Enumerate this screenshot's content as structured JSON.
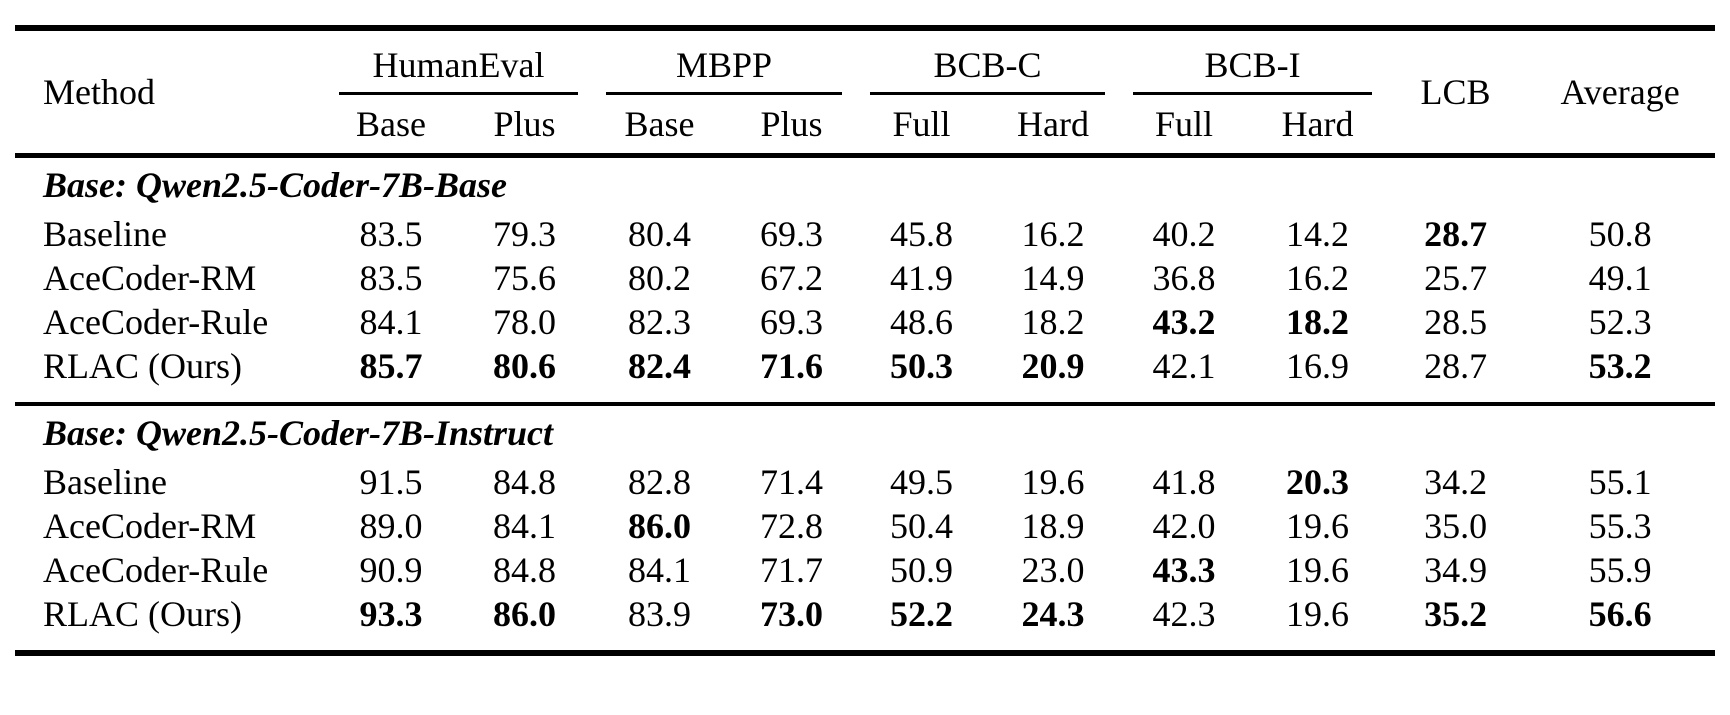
{
  "page": {
    "background_color": "#ffffff",
    "text_color": "#000000",
    "rule_color": "#000000"
  },
  "table": {
    "method_header": "Method",
    "groups": [
      {
        "label": "HumanEval",
        "subs": [
          "Base",
          "Plus"
        ]
      },
      {
        "label": "MBPP",
        "subs": [
          "Base",
          "Plus"
        ]
      },
      {
        "label": "BCB-C",
        "subs": [
          "Full",
          "Hard"
        ]
      },
      {
        "label": "BCB-I",
        "subs": [
          "Full",
          "Hard"
        ]
      },
      {
        "label": "LCB",
        "subs": []
      },
      {
        "label": "Average",
        "subs": []
      }
    ],
    "sections": [
      {
        "title": "Base: Qwen2.5-Coder-7B-Base",
        "rows": [
          {
            "method": "Baseline",
            "values": [
              "83.5",
              "79.3",
              "80.4",
              "69.3",
              "45.8",
              "16.2",
              "40.2",
              "14.2",
              "28.7",
              "50.8"
            ],
            "bold_cols": [
              8
            ]
          },
          {
            "method": "AceCoder-RM",
            "values": [
              "83.5",
              "75.6",
              "80.2",
              "67.2",
              "41.9",
              "14.9",
              "36.8",
              "16.2",
              "25.7",
              "49.1"
            ],
            "bold_cols": []
          },
          {
            "method": "AceCoder-Rule",
            "values": [
              "84.1",
              "78.0",
              "82.3",
              "69.3",
              "48.6",
              "18.2",
              "43.2",
              "18.2",
              "28.5",
              "52.3"
            ],
            "bold_cols": [
              6,
              7
            ]
          },
          {
            "method": "RLAC (Ours)",
            "values": [
              "85.7",
              "80.6",
              "82.4",
              "71.6",
              "50.3",
              "20.9",
              "42.1",
              "16.9",
              "28.7",
              "53.2"
            ],
            "bold_cols": [
              0,
              1,
              2,
              3,
              4,
              5,
              9
            ]
          }
        ]
      },
      {
        "title": "Base: Qwen2.5-Coder-7B-Instruct",
        "rows": [
          {
            "method": "Baseline",
            "values": [
              "91.5",
              "84.8",
              "82.8",
              "71.4",
              "49.5",
              "19.6",
              "41.8",
              "20.3",
              "34.2",
              "55.1"
            ],
            "bold_cols": [
              7
            ]
          },
          {
            "method": "AceCoder-RM",
            "values": [
              "89.0",
              "84.1",
              "86.0",
              "72.8",
              "50.4",
              "18.9",
              "42.0",
              "19.6",
              "35.0",
              "55.3"
            ],
            "bold_cols": [
              2
            ]
          },
          {
            "method": "AceCoder-Rule",
            "values": [
              "90.9",
              "84.8",
              "84.1",
              "71.7",
              "50.9",
              "23.0",
              "43.3",
              "19.6",
              "34.9",
              "55.9"
            ],
            "bold_cols": [
              6
            ]
          },
          {
            "method": "RLAC (Ours)",
            "values": [
              "93.3",
              "86.0",
              "83.9",
              "73.0",
              "52.2",
              "24.3",
              "42.3",
              "19.6",
              "35.2",
              "56.6"
            ],
            "bold_cols": [
              0,
              1,
              3,
              4,
              5,
              8,
              9
            ]
          }
        ]
      }
    ]
  }
}
